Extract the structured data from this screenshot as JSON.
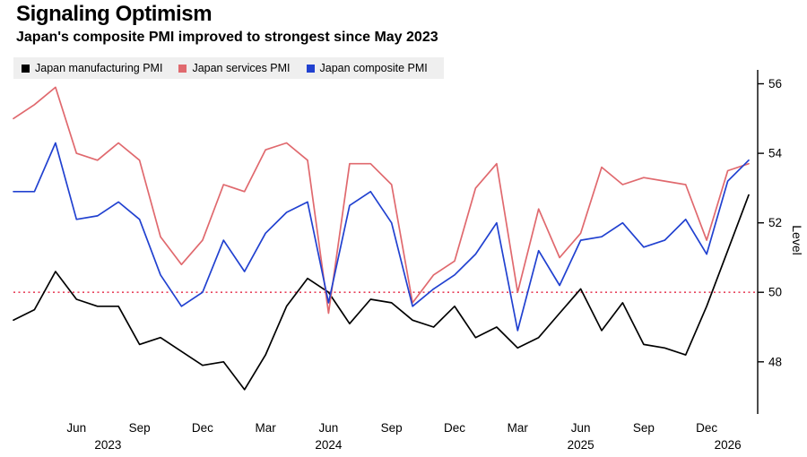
{
  "header": {
    "title": "Signaling Optimism",
    "subtitle": "Japan's composite PMI improved to strongest since May 2023"
  },
  "legend": [
    {
      "id": "manufacturing",
      "label": "Japan manufacturing PMI",
      "color": "#000000"
    },
    {
      "id": "services",
      "label": "Japan services PMI",
      "color": "#e0696e"
    },
    {
      "id": "composite",
      "label": "Japan composite PMI",
      "color": "#2141d0"
    }
  ],
  "chart_data": {
    "type": "line",
    "title": "Signaling Optimism",
    "subtitle": "Japan's composite PMI improved to strongest since May 2023",
    "ylabel": "Level",
    "ylim": [
      46.5,
      56.4
    ],
    "y_ticks": [
      48,
      50,
      52,
      54,
      56
    ],
    "grid": "off",
    "legend_position": "top-left",
    "reference_line": {
      "value": 50,
      "color": "#e8435c",
      "style": "dotted"
    },
    "x": [
      "Mar 2023",
      "Apr 2023",
      "May 2023",
      "Jun 2023",
      "Jul 2023",
      "Aug 2023",
      "Sep 2023",
      "Oct 2023",
      "Nov 2023",
      "Dec 2023",
      "Jan 2024",
      "Feb 2024",
      "Mar 2024",
      "Apr 2024",
      "May 2024",
      "Jun 2024",
      "Jul 2024",
      "Aug 2024",
      "Sep 2024",
      "Oct 2024",
      "Nov 2024",
      "Dec 2024",
      "Jan 2025",
      "Feb 2025",
      "Mar 2025",
      "Apr 2025",
      "May 2025",
      "Jun 2025",
      "Jul 2025",
      "Aug 2025",
      "Sep 2025",
      "Oct 2025",
      "Nov 2025",
      "Dec 2025",
      "Jan 2026",
      "Feb 2026"
    ],
    "x_ticks": [
      {
        "label": "Jun",
        "i": 3
      },
      {
        "label": "Sep",
        "i": 6
      },
      {
        "label": "Dec",
        "i": 9
      },
      {
        "label": "Mar",
        "i": 12
      },
      {
        "label": "Jun",
        "i": 15
      },
      {
        "label": "Sep",
        "i": 18
      },
      {
        "label": "Dec",
        "i": 21
      },
      {
        "label": "Mar",
        "i": 24
      },
      {
        "label": "Jun",
        "i": 27
      },
      {
        "label": "Sep",
        "i": 30
      },
      {
        "label": "Dec",
        "i": 33
      }
    ],
    "year_ticks": [
      {
        "label": "2023",
        "i": 4.5
      },
      {
        "label": "2024",
        "i": 15
      },
      {
        "label": "2025",
        "i": 27
      },
      {
        "label": "2026",
        "i": 34
      }
    ],
    "series": [
      {
        "id": "manufacturing",
        "name": "Japan manufacturing PMI",
        "color": "#000000",
        "values": [
          49.2,
          49.5,
          50.6,
          49.8,
          49.6,
          49.6,
          48.5,
          48.7,
          48.3,
          47.9,
          48.0,
          47.2,
          48.2,
          49.6,
          50.4,
          50.0,
          49.1,
          49.8,
          49.7,
          49.2,
          49.0,
          49.6,
          48.7,
          49.0,
          48.4,
          48.7,
          49.4,
          50.1,
          48.9,
          49.7,
          48.5,
          48.4,
          48.2,
          49.6,
          51.2,
          52.8
        ]
      },
      {
        "id": "services",
        "name": "Japan services PMI",
        "color": "#e0696e",
        "values": [
          55.0,
          55.4,
          55.9,
          54.0,
          53.8,
          54.3,
          53.8,
          51.6,
          50.8,
          51.5,
          53.1,
          52.9,
          54.1,
          54.3,
          53.8,
          49.4,
          53.7,
          53.7,
          53.1,
          49.7,
          50.5,
          50.9,
          53.0,
          53.7,
          50.0,
          52.4,
          51.0,
          51.7,
          53.6,
          53.1,
          53.3,
          53.2,
          53.1,
          51.5,
          53.5,
          53.7
        ]
      },
      {
        "id": "composite",
        "name": "Japan composite PMI",
        "color": "#2141d0",
        "values": [
          52.9,
          52.9,
          54.3,
          52.1,
          52.2,
          52.6,
          52.1,
          50.5,
          49.6,
          50.0,
          51.5,
          50.6,
          51.7,
          52.3,
          52.6,
          49.7,
          52.5,
          52.9,
          52.0,
          49.6,
          50.1,
          50.5,
          51.1,
          52.0,
          48.9,
          51.2,
          50.2,
          51.5,
          51.6,
          52.0,
          51.3,
          51.5,
          52.1,
          51.1,
          53.2,
          53.8
        ]
      }
    ]
  }
}
